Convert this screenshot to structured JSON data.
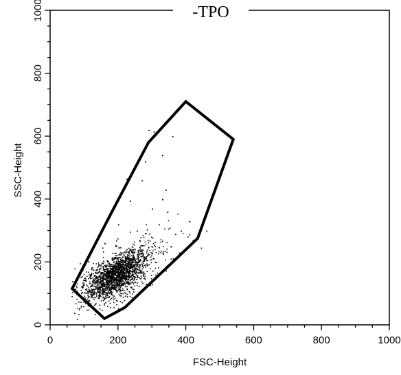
{
  "chart_data": {
    "type": "scatter",
    "title": "-TPO",
    "xlabel": "FSC-Height",
    "ylabel": "SSC-Height",
    "xlim": [
      0,
      1000
    ],
    "ylim": [
      0,
      1000
    ],
    "x_ticks": [
      "0",
      "200",
      "400",
      "600",
      "800",
      "1000"
    ],
    "y_ticks": [
      "0",
      "200",
      "400",
      "600",
      "800",
      "1000"
    ],
    "grid": false,
    "point_color": "#000000",
    "gate_polygon": [
      [
        65,
        115
      ],
      [
        160,
        20
      ],
      [
        220,
        55
      ],
      [
        435,
        275
      ],
      [
        540,
        590
      ],
      [
        400,
        710
      ],
      [
        290,
        580
      ],
      [
        180,
        355
      ]
    ],
    "cluster": {
      "center": [
        195,
        160
      ],
      "major_axis_angle_deg": 38,
      "spread_major": 55,
      "spread_minor": 26,
      "approx_points": 2000
    },
    "sparse_points": [
      [
        290,
        620
      ],
      [
        305,
        615
      ],
      [
        360,
        600
      ],
      [
        225,
        465
      ],
      [
        270,
        460
      ],
      [
        235,
        395
      ],
      [
        330,
        400
      ],
      [
        320,
        320
      ],
      [
        385,
        300
      ],
      [
        410,
        330
      ],
      [
        300,
        370
      ],
      [
        345,
        360
      ],
      [
        255,
        300
      ],
      [
        420,
        270
      ],
      [
        380,
        230
      ],
      [
        355,
        250
      ],
      [
        160,
        260
      ],
      [
        120,
        160
      ],
      [
        95,
        120
      ],
      [
        110,
        95
      ],
      [
        340,
        430
      ],
      [
        330,
        540
      ],
      [
        460,
        300
      ],
      [
        280,
        520
      ],
      [
        200,
        320
      ]
    ]
  }
}
